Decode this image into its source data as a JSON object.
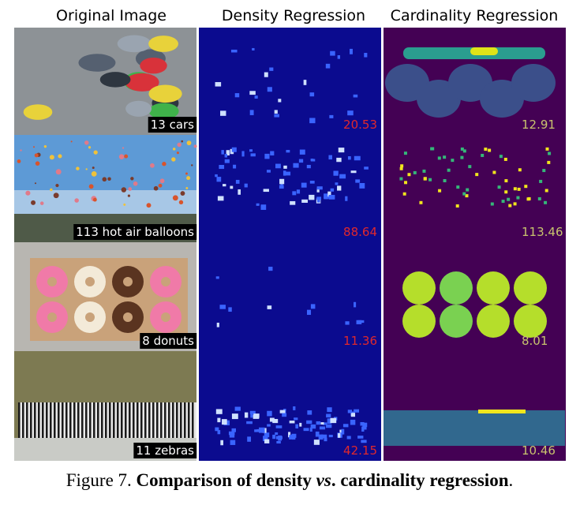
{
  "headers": [
    "Original Image",
    "Density Regression",
    "Cardinality Regression"
  ],
  "rows": [
    {
      "label": "13 cars",
      "density": "20.53",
      "cardinality": "12.91"
    },
    {
      "label": "113 hot air balloons",
      "density": "88.64",
      "cardinality": "113.46"
    },
    {
      "label": "8 donuts",
      "density": "11.36",
      "cardinality": "8.01"
    },
    {
      "label": "11 zebras",
      "density": "42.15",
      "cardinality": "10.46"
    }
  ],
  "caption": [
    "Figure 7.",
    "Comparison of density ",
    "vs",
    ". cardinality regression",
    "."
  ]
}
